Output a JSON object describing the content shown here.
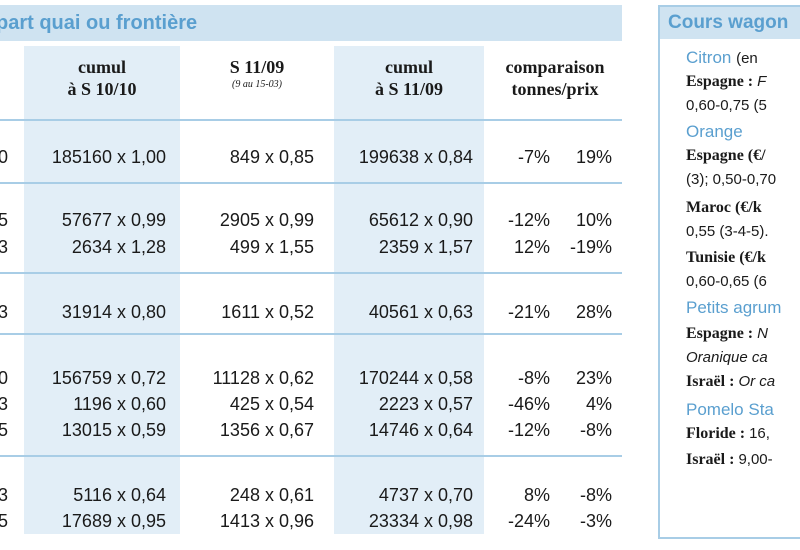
{
  "left_header": "part quai ou frontière",
  "columns": [
    {
      "line1": "cumul",
      "line2": "à S 10/10",
      "sub": ""
    },
    {
      "line1": "S 11/09",
      "line2": "",
      "sub": "(9 au 15-03)"
    },
    {
      "line1": "cumul",
      "line2": "à S 11/09",
      "sub": ""
    },
    {
      "line1": "comparaison",
      "line2": "tonnes/prix",
      "sub": ""
    }
  ],
  "rows": [
    {
      "edge": "0",
      "c1": "185160 x 1,00",
      "c2": "849 x 0,85",
      "c3": "199638 x 0,84",
      "c4": "-7%",
      "c5": "19%"
    },
    {
      "edge": "5",
      "c1": "57677 x 0,99",
      "c2": "2905 x 0,99",
      "c3": "65612 x 0,90",
      "c4": "-12%",
      "c5": "10%"
    },
    {
      "edge": "3",
      "c1": "2634 x 1,28",
      "c2": "499 x 1,55",
      "c3": "2359 x 1,57",
      "c4": "12%",
      "c5": "-19%"
    },
    {
      "edge": "3",
      "c1": "31914 x 0,80",
      "c2": "1611 x 0,52",
      "c3": "40561 x 0,63",
      "c4": "-21%",
      "c5": "28%"
    },
    {
      "edge": "0",
      "c1": "156759 x 0,72",
      "c2": "11128 x 0,62",
      "c3": "170244 x 0,58",
      "c4": "-8%",
      "c5": "23%"
    },
    {
      "edge": "3",
      "c1": "1196 x 0,60",
      "c2": "425 x 0,54",
      "c3": "2223 x 0,57",
      "c4": "-46%",
      "c5": "4%"
    },
    {
      "edge": "5",
      "c1": "13015 x 0,59",
      "c2": "1356 x 0,67",
      "c3": "14746 x 0,64",
      "c4": "-12%",
      "c5": "-8%"
    },
    {
      "edge": "3",
      "c1": "5116 x 0,64",
      "c2": "248 x 0,61",
      "c3": "4737 x 0,70",
      "c4": "8%",
      "c5": "-8%"
    },
    {
      "edge": "5",
      "c1": "17689 x 0,95",
      "c2": "1413 x 0,96",
      "c3": "23334 x 0,98",
      "c4": "-24%",
      "c5": "-3%"
    }
  ],
  "right_panel": {
    "header": "Cours wagon",
    "lines": [
      {
        "style": "cat",
        "parts": [
          {
            "t": "Citron ",
            "s": "cat"
          },
          {
            "t": "(en ",
            "s": "plain"
          }
        ]
      },
      {
        "style": "b",
        "parts": [
          {
            "t": "Espagne : ",
            "s": "b"
          },
          {
            "t": "F",
            "s": "i"
          }
        ]
      },
      {
        "style": "plain",
        "parts": [
          {
            "t": "0,60-0,75 (5",
            "s": "plain"
          }
        ]
      },
      {
        "style": "cat",
        "parts": [
          {
            "t": "Orange",
            "s": "cat"
          }
        ]
      },
      {
        "style": "b",
        "parts": [
          {
            "t": "Espagne ",
            "s": "b"
          },
          {
            "t": "(€/",
            "s": "b"
          }
        ]
      },
      {
        "style": "plain",
        "parts": [
          {
            "t": "(3); 0,50-0,70",
            "s": "plain"
          }
        ]
      },
      {
        "style": "b",
        "parts": [
          {
            "t": "Maroc ",
            "s": "b"
          },
          {
            "t": "(€/k",
            "s": "b"
          }
        ]
      },
      {
        "style": "plain",
        "parts": [
          {
            "t": "0,55 (3-4-5).",
            "s": "plain"
          }
        ]
      },
      {
        "style": "b",
        "parts": [
          {
            "t": "Tunisie ",
            "s": "b"
          },
          {
            "t": "(€/k",
            "s": "b"
          }
        ]
      },
      {
        "style": "plain",
        "parts": [
          {
            "t": "0,60-0,65 (6",
            "s": "plain"
          }
        ]
      },
      {
        "style": "cat",
        "parts": [
          {
            "t": "Petits agrum",
            "s": "cat"
          }
        ]
      },
      {
        "style": "b",
        "parts": [
          {
            "t": "Espagne : ",
            "s": "b"
          },
          {
            "t": "N",
            "s": "i"
          }
        ]
      },
      {
        "style": "i",
        "parts": [
          {
            "t": "Oranique ca",
            "s": "i"
          }
        ]
      },
      {
        "style": "b",
        "parts": [
          {
            "t": "Israël : ",
            "s": "b"
          },
          {
            "t": "Or ca",
            "s": "i"
          }
        ]
      },
      {
        "style": "cat",
        "parts": [
          {
            "t": "Pomelo Sta",
            "s": "cat"
          }
        ]
      },
      {
        "style": "b",
        "parts": [
          {
            "t": "Floride : ",
            "s": "b"
          },
          {
            "t": "16,",
            "s": "plain"
          }
        ]
      },
      {
        "style": "b",
        "parts": [
          {
            "t": "Israël : ",
            "s": "b"
          },
          {
            "t": "9,00-",
            "s": "plain"
          }
        ]
      }
    ]
  }
}
